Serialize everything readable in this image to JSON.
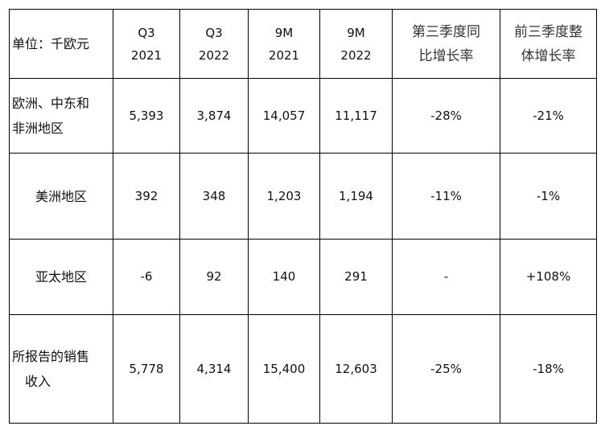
{
  "table": {
    "header": {
      "unit": "单位：千欧元",
      "columns": [
        [
          "Q3",
          "2021"
        ],
        [
          "Q3",
          "2022"
        ],
        [
          "9M",
          "2021"
        ],
        [
          "9M",
          "2022"
        ],
        [
          "第三季度同",
          "比增长率"
        ],
        [
          "前三季度整",
          "体增长率"
        ]
      ]
    },
    "rows": [
      {
        "label": [
          "欧洲、中东和",
          "非洲地区"
        ],
        "values": [
          "5,393",
          "3,874",
          "14,057",
          "11,117",
          "-28%",
          "-21%"
        ]
      },
      {
        "label": [
          "美洲地区"
        ],
        "values": [
          "392",
          "348",
          "1,203",
          "1,194",
          "-11%",
          "-1%"
        ]
      },
      {
        "label": [
          "亚太地区"
        ],
        "values": [
          "-6",
          "92",
          "140",
          "291",
          "-",
          "+108%"
        ]
      },
      {
        "label": [
          "所报告的销售",
          "收入"
        ],
        "values": [
          "5,778",
          "4,314",
          "15,400",
          "12,603",
          "-25%",
          "-18%"
        ]
      }
    ]
  }
}
